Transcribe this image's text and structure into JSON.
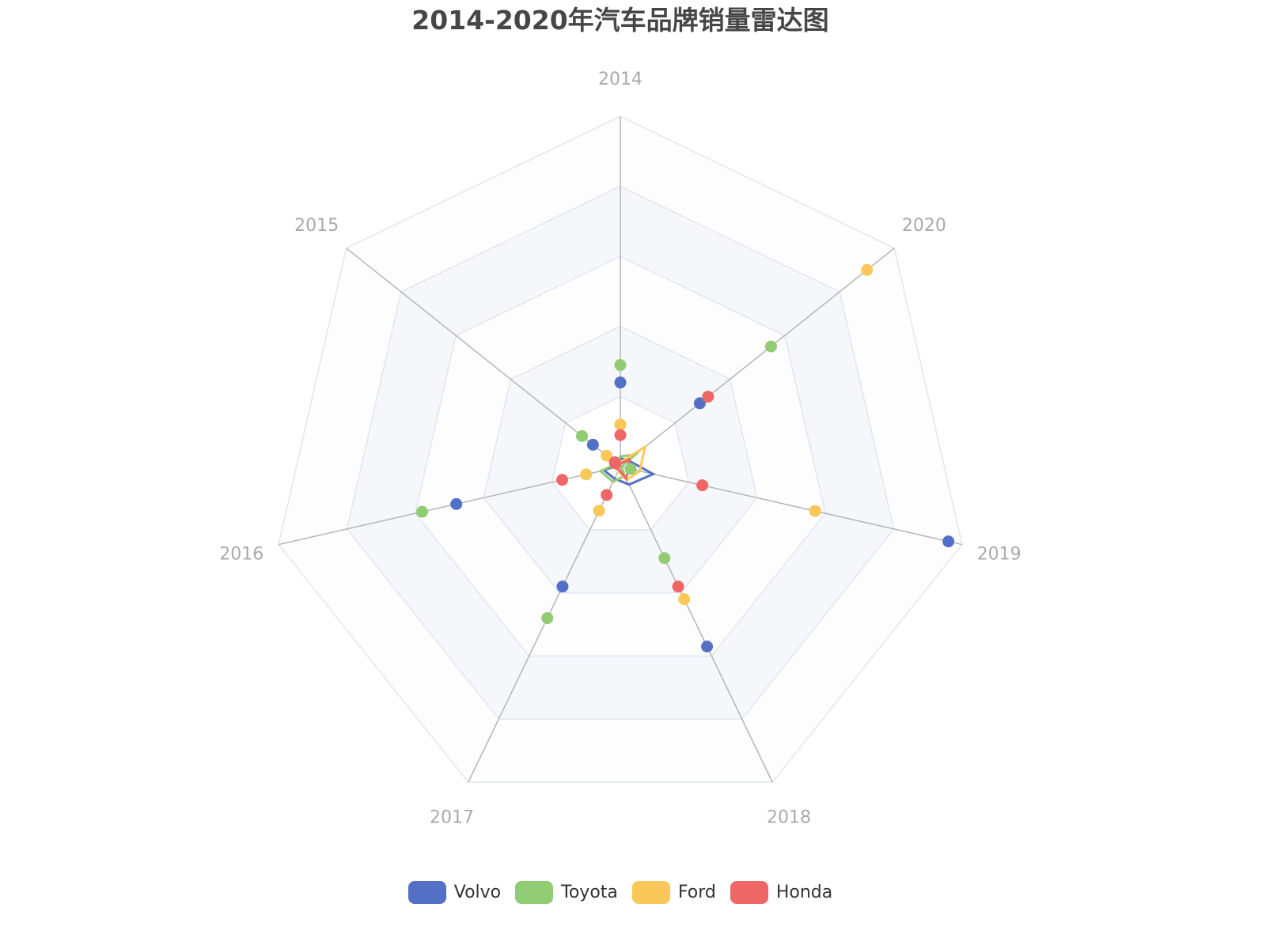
{
  "chart_data": {
    "type": "radar",
    "title": "2014-2020年汽车品牌销量雷达图",
    "indicators": [
      "2014",
      "2015",
      "2016",
      "2017",
      "2018",
      "2019",
      "2020"
    ],
    "max": 100,
    "split_number": 5,
    "legend_position": "bottom",
    "series": [
      {
        "name": "Volvo",
        "color": "#5470c6",
        "values": [
          24,
          10,
          48,
          38,
          57,
          96,
          29
        ]
      },
      {
        "name": "Toyota",
        "color": "#91cc75",
        "values": [
          29,
          14,
          58,
          48,
          29,
          3,
          55
        ]
      },
      {
        "name": "Ford",
        "color": "#fac858",
        "values": [
          12,
          5,
          10,
          14,
          42,
          57,
          90
        ]
      },
      {
        "name": "Honda",
        "color": "#ee6666",
        "values": [
          9,
          2,
          17,
          9,
          38,
          24,
          32
        ]
      }
    ]
  },
  "title": "2014-2020年汽车品牌销量雷达图",
  "legend": [
    {
      "label": "Volvo",
      "color": "#5470c6"
    },
    {
      "label": "Toyota",
      "color": "#91cc75"
    },
    {
      "label": "Ford",
      "color": "#fac858"
    },
    {
      "label": "Honda",
      "color": "#ee6666"
    }
  ]
}
